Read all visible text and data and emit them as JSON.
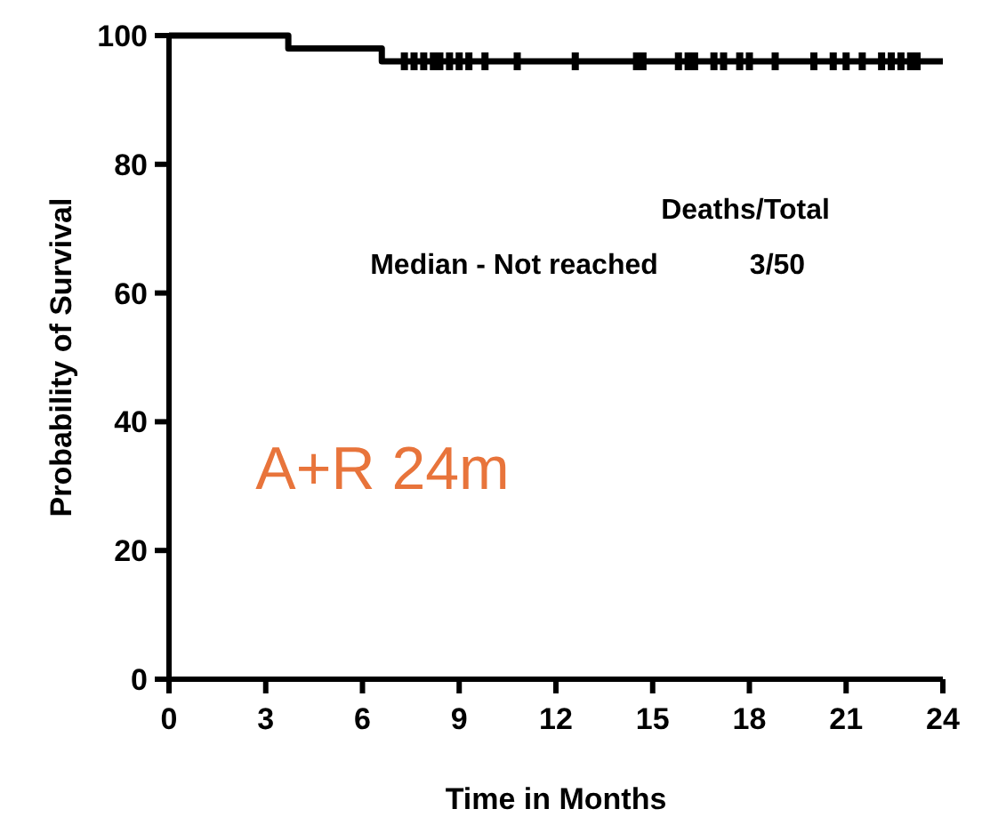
{
  "chart_data": {
    "type": "step",
    "xlabel": "Time in Months",
    "ylabel": "Probability of Survival",
    "xlim": [
      0,
      24
    ],
    "xticks": [
      0,
      3,
      6,
      9,
      12,
      15,
      18,
      21,
      24
    ],
    "ylim": [
      0,
      100
    ],
    "yticks": [
      0,
      20,
      40,
      60,
      80,
      100
    ],
    "grid": false,
    "series": [
      {
        "color": "#000000",
        "x": [
          0,
          3.7,
          6.6,
          24
        ],
        "values": [
          100,
          98,
          96,
          96
        ]
      },
      {
        "type": "scatter",
        "color": "#000000",
        "marker": "square",
        "x": [
          7.3,
          7.6,
          7.9,
          8.2,
          8.4,
          8.7,
          9,
          9.3,
          9.8,
          10.8,
          12.6,
          14.5,
          14.7,
          15.8,
          16.1,
          16.3,
          16.9,
          17.2,
          17.7,
          18,
          18.8,
          20,
          20.6,
          21,
          21.5,
          22.1,
          22.4,
          22.7,
          23,
          23.2
        ],
        "values": [
          96,
          96,
          96,
          96,
          96,
          96,
          96,
          96,
          96,
          96,
          96,
          96,
          96,
          96,
          96,
          96,
          96,
          96,
          96,
          96,
          96,
          96,
          96,
          96,
          96,
          96,
          96,
          96,
          96,
          96
        ]
      }
    ],
    "annotations": [
      "Deaths/Total",
      "Median - Not reached",
      "3/50",
      "A+R 24m"
    ]
  }
}
